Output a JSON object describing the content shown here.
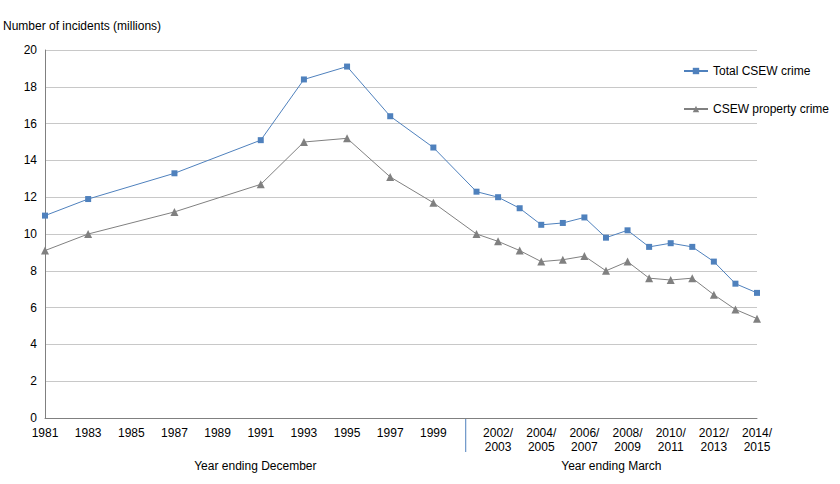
{
  "chart_data": {
    "type": "line",
    "ylabel": "Number of incidents (millions)",
    "xlabel": [
      "Year ending December",
      "Year ending March"
    ],
    "categories": [
      "1981",
      null,
      "1983",
      null,
      "1985",
      null,
      "1987",
      null,
      "1989",
      null,
      "1991",
      null,
      "1993",
      null,
      "1995",
      null,
      "1997",
      null,
      "1999",
      null,
      null,
      "2002/\n2003",
      null,
      "2004/\n2005",
      null,
      "2006/\n2007",
      null,
      "2008/\n2009",
      null,
      "2010/\n2011",
      null,
      "2012/\n2013",
      null,
      "2014/\n2015"
    ],
    "series": [
      {
        "name": "Total CSEW crime",
        "color": "#4f81bd",
        "marker": "square",
        "values": [
          11.0,
          null,
          11.9,
          null,
          null,
          null,
          13.3,
          null,
          null,
          null,
          15.1,
          null,
          18.4,
          null,
          19.1,
          null,
          16.4,
          null,
          14.7,
          null,
          12.3,
          12.0,
          11.4,
          10.5,
          10.6,
          10.9,
          9.8,
          10.2,
          9.3,
          9.5,
          9.3,
          8.5,
          7.3,
          6.8
        ]
      },
      {
        "name": "CSEW property crime",
        "color": "#808080",
        "marker": "triangle",
        "values": [
          9.1,
          null,
          10.0,
          null,
          null,
          null,
          11.2,
          null,
          null,
          null,
          12.7,
          null,
          15.0,
          null,
          15.2,
          null,
          13.1,
          null,
          11.7,
          null,
          10.0,
          9.6,
          9.1,
          8.5,
          8.6,
          8.8,
          8.0,
          8.5,
          7.6,
          7.5,
          7.6,
          6.7,
          5.9,
          5.4
        ]
      }
    ],
    "ylim": [
      0,
      20
    ],
    "yticks": [
      0,
      2,
      4,
      6,
      8,
      10,
      12,
      14,
      16,
      18,
      20
    ],
    "grid": true,
    "legend": "top-right"
  }
}
